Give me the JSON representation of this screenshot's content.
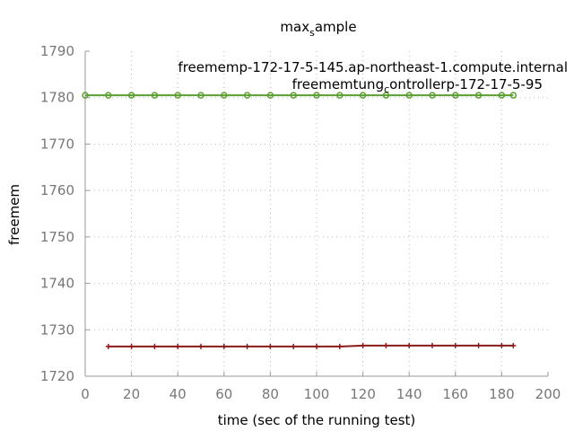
{
  "chart_data": {
    "type": "line",
    "title_main": "max",
    "title_sub": "s",
    "title_tail": "ample",
    "xlabel": "time (sec of the running test)",
    "ylabel": "freemem",
    "xlim": [
      0,
      200
    ],
    "ylim": [
      1720,
      1790
    ],
    "xticks": [
      0,
      20,
      40,
      60,
      80,
      100,
      120,
      140,
      160,
      180,
      200
    ],
    "yticks": [
      1720,
      1730,
      1740,
      1750,
      1760,
      1770,
      1780,
      1790
    ],
    "grid": true,
    "legend": [
      {
        "parts": [
          "freemem",
          "p-172-17-5-145.ap-northeast-1.compute.internal"
        ],
        "sub": ""
      },
      {
        "parts": [
          "freemem",
          "t",
          "ung",
          "c",
          "ontroller",
          "p-172-17-5-95"
        ],
        "sub": ""
      }
    ],
    "legend_text": [
      "freememp-172-17-5-145.ap-northeast-1.compute.internal",
      "freememtung",
      "ontrollerp-172-17-5-95"
    ],
    "legend_sub": "c",
    "series": [
      {
        "name": "freememp-172-17-5-145.ap-northeast-1.compute.internal",
        "color": "#5a9e32",
        "marker": "circle",
        "x": [
          0,
          10,
          20,
          30,
          40,
          50,
          60,
          70,
          80,
          90,
          100,
          110,
          120,
          130,
          140,
          150,
          160,
          170,
          180,
          185
        ],
        "y": [
          1780.5,
          1780.5,
          1780.5,
          1780.5,
          1780.5,
          1780.5,
          1780.5,
          1780.5,
          1780.5,
          1780.5,
          1780.5,
          1780.5,
          1780.5,
          1780.5,
          1780.5,
          1780.5,
          1780.5,
          1780.5,
          1780.5,
          1780.5
        ]
      },
      {
        "name": "freememtungcontrollerp-172-17-5-95",
        "color": "#8b1a1a",
        "marker": "plus",
        "x": [
          10,
          20,
          30,
          40,
          50,
          60,
          70,
          80,
          90,
          100,
          110,
          120,
          130,
          140,
          150,
          160,
          170,
          180,
          185
        ],
        "y": [
          1726.4,
          1726.4,
          1726.4,
          1726.4,
          1726.4,
          1726.4,
          1726.4,
          1726.4,
          1726.4,
          1726.4,
          1726.4,
          1726.6,
          1726.6,
          1726.6,
          1726.6,
          1726.6,
          1726.6,
          1726.6,
          1726.6
        ]
      }
    ]
  }
}
